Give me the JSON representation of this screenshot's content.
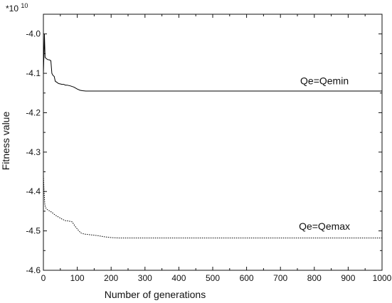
{
  "chart_data": {
    "type": "line",
    "title": "",
    "xlabel": "Number of generations",
    "ylabel": "Fitness value",
    "y_multiplier_base": "*10",
    "y_multiplier_exp": "10",
    "xlim": [
      0,
      1000
    ],
    "ylim": [
      -4.6,
      -3.95
    ],
    "x_ticks": [
      0,
      100,
      200,
      300,
      400,
      500,
      600,
      700,
      800,
      900,
      1000
    ],
    "x_tick_labels": [
      "0",
      "100",
      "200",
      "300",
      "400",
      "500",
      "600",
      "700",
      "800",
      "900",
      "1000"
    ],
    "y_ticks": [
      -4.0,
      -4.1,
      -4.2,
      -4.3,
      -4.4,
      -4.5,
      -4.6
    ],
    "y_tick_labels": [
      "-4.0",
      "-4.1",
      "-4.2",
      "-4.3",
      "-4.4",
      "-4.5",
      "-4.6"
    ],
    "grid": false,
    "legend": "none",
    "annotations": [
      {
        "text": "Qe=Qemin",
        "series": 0,
        "x": 830,
        "y": -4.128
      },
      {
        "text": "Qe=Qemax",
        "series": 1,
        "x": 830,
        "y": -4.497
      }
    ],
    "series": [
      {
        "style": "solid",
        "color": "#000000",
        "x": [
          0,
          2,
          3,
          5,
          8,
          12,
          18,
          22,
          25,
          28,
          32,
          35,
          40,
          45,
          50,
          55,
          60,
          65,
          70,
          80,
          90,
          100,
          108,
          115,
          125,
          140,
          170,
          220,
          400,
          700,
          1000
        ],
        "y": [
          -4.1,
          -4.04,
          -4.0,
          -4.06,
          -4.062,
          -4.065,
          -4.066,
          -4.068,
          -4.1,
          -4.105,
          -4.108,
          -4.12,
          -4.123,
          -4.126,
          -4.127,
          -4.128,
          -4.128,
          -4.13,
          -4.13,
          -4.132,
          -4.135,
          -4.14,
          -4.143,
          -4.144,
          -4.145,
          -4.145,
          -4.145,
          -4.145,
          -4.145,
          -4.145,
          -4.145
        ]
      },
      {
        "style": "dotted",
        "color": "#000000",
        "x": [
          0,
          2,
          4,
          6,
          10,
          15,
          20,
          28,
          35,
          45,
          55,
          65,
          75,
          85,
          95,
          100,
          105,
          110,
          120,
          140,
          160,
          180,
          200,
          220,
          240,
          300,
          500,
          700,
          1000
        ],
        "y": [
          -4.36,
          -4.4,
          -4.43,
          -4.44,
          -4.445,
          -4.448,
          -4.45,
          -4.455,
          -4.46,
          -4.465,
          -4.47,
          -4.474,
          -4.475,
          -4.477,
          -4.49,
          -4.495,
          -4.5,
          -4.505,
          -4.508,
          -4.51,
          -4.512,
          -4.515,
          -4.517,
          -4.518,
          -4.518,
          -4.518,
          -4.518,
          -4.518,
          -4.518
        ]
      }
    ]
  }
}
